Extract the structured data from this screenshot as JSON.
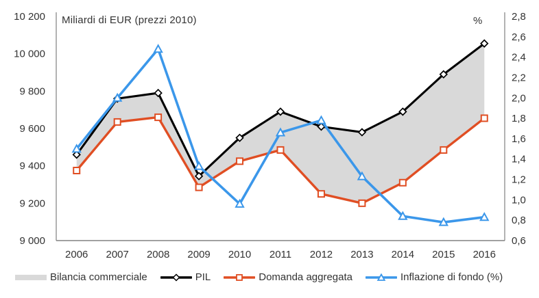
{
  "title": "Miliardi di EUR (prezzi 2010)",
  "right_axis_unit": "%",
  "legend": [
    {
      "label": "Bilancia commerciale",
      "swatch": "area",
      "color": "#D9D9D9"
    },
    {
      "label": "PIL",
      "swatch": "line",
      "marker": "diamond",
      "color": "#000000"
    },
    {
      "label": "Domanda aggregata",
      "swatch": "line",
      "marker": "square",
      "color": "#E04E23"
    },
    {
      "label": "Inflazione di fondo (%)",
      "swatch": "line",
      "marker": "triangle",
      "color": "#3B97EA"
    }
  ],
  "colors": {
    "axis_line": "#808080",
    "tick_text": "#333333",
    "area_fill": "#D9D9D9",
    "pil": "#000000",
    "domanda": "#E04E23",
    "inflazione": "#3B97EA"
  },
  "chart_data": {
    "type": "line",
    "title": "Miliardi di EUR (prezzi 2010)",
    "legend_position": "bottom",
    "grid": false,
    "categories": [
      "2006",
      "2007",
      "2008",
      "2009",
      "2010",
      "2011",
      "2012",
      "2013",
      "2014",
      "2015",
      "2016"
    ],
    "left_axis": {
      "label": "Miliardi di EUR (prezzi 2010)",
      "min": 9000,
      "max": 10200,
      "step": 200,
      "tick_labels": [
        "10 200",
        "10 000",
        "9 800",
        "9 600",
        "9 400",
        "9 200",
        "9 000"
      ]
    },
    "right_axis": {
      "label": "%",
      "min": 0.6,
      "max": 2.8,
      "step": 0.2,
      "tick_labels": [
        "2,8",
        "2,6",
        "2,4",
        "2,2",
        "2,0",
        "1,8",
        "1,6",
        "1,4",
        "1,2",
        "1,0",
        "0,8",
        "0,6"
      ]
    },
    "series": [
      {
        "name": "Bilancia commerciale",
        "type": "area-between",
        "upper": "PIL",
        "lower": "Domanda aggregata",
        "axis": "left",
        "color": "#D9D9D9"
      },
      {
        "name": "PIL",
        "type": "line",
        "axis": "left",
        "marker": "diamond",
        "color": "#000000",
        "values": [
          9460,
          9760,
          9790,
          9345,
          9550,
          9690,
          9610,
          9580,
          9690,
          9890,
          10055
        ]
      },
      {
        "name": "Domanda aggregata",
        "type": "line",
        "axis": "left",
        "marker": "square",
        "color": "#E04E23",
        "values": [
          9375,
          9635,
          9660,
          9285,
          9425,
          9485,
          9250,
          9200,
          9310,
          9485,
          9655
        ]
      },
      {
        "name": "Inflazione di fondo (%)",
        "type": "line",
        "axis": "right",
        "marker": "triangle",
        "color": "#3B97EA",
        "values": [
          1.5,
          2.0,
          2.48,
          1.33,
          0.96,
          1.66,
          1.78,
          1.23,
          0.84,
          0.78,
          0.83
        ]
      }
    ]
  }
}
